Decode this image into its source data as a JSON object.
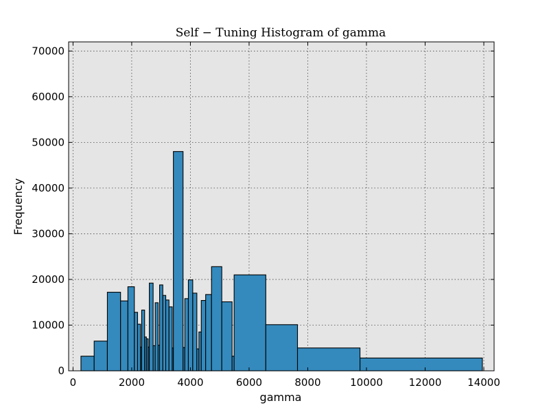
{
  "chart_data": {
    "type": "bar",
    "title": "Self − Tuning Histogram of gamma",
    "xlabel": "gamma",
    "ylabel": "Frequency",
    "xlim": [
      -150,
      14350
    ],
    "ylim": [
      0,
      72000
    ],
    "xticks": [
      0,
      2000,
      4000,
      6000,
      8000,
      10000,
      12000,
      14000
    ],
    "yticks": [
      0,
      10000,
      20000,
      30000,
      40000,
      50000,
      60000,
      70000
    ],
    "xtick_labels": [
      "0",
      "2000",
      "4000",
      "6000",
      "8000",
      "10000",
      "12000",
      "14000"
    ],
    "ytick_labels": [
      "0",
      "10000",
      "20000",
      "30000",
      "40000",
      "50000",
      "60000",
      "70000"
    ],
    "grid": true,
    "bar_color": "#348ABD",
    "plot_bg": "#E5E5E5",
    "bins": [
      {
        "x0": 270,
        "x1": 720,
        "value": 3200
      },
      {
        "x0": 720,
        "x1": 1170,
        "value": 6500
      },
      {
        "x0": 1170,
        "x1": 1620,
        "value": 17200
      },
      {
        "x0": 1620,
        "x1": 1870,
        "value": 15300
      },
      {
        "x0": 1870,
        "x1": 2090,
        "value": 18400
      },
      {
        "x0": 2090,
        "x1": 2200,
        "value": 12800
      },
      {
        "x0": 2200,
        "x1": 2300,
        "value": 10200
      },
      {
        "x0": 2300,
        "x1": 2340,
        "value": 5200
      },
      {
        "x0": 2340,
        "x1": 2440,
        "value": 13300
      },
      {
        "x0": 2440,
        "x1": 2500,
        "value": 7400
      },
      {
        "x0": 2500,
        "x1": 2560,
        "value": 7000
      },
      {
        "x0": 2560,
        "x1": 2600,
        "value": 5200
      },
      {
        "x0": 2600,
        "x1": 2730,
        "value": 19200
      },
      {
        "x0": 2730,
        "x1": 2800,
        "value": 5500
      },
      {
        "x0": 2800,
        "x1": 2900,
        "value": 14900
      },
      {
        "x0": 2900,
        "x1": 2950,
        "value": 5600
      },
      {
        "x0": 2950,
        "x1": 3060,
        "value": 18800
      },
      {
        "x0": 3060,
        "x1": 3160,
        "value": 16500
      },
      {
        "x0": 3160,
        "x1": 3270,
        "value": 15500
      },
      {
        "x0": 3270,
        "x1": 3380,
        "value": 14000
      },
      {
        "x0": 3380,
        "x1": 3420,
        "value": 5000
      },
      {
        "x0": 3420,
        "x1": 3750,
        "value": 48000
      },
      {
        "x0": 3750,
        "x1": 3810,
        "value": 5100
      },
      {
        "x0": 3810,
        "x1": 3930,
        "value": 15800
      },
      {
        "x0": 3930,
        "x1": 4080,
        "value": 19900
      },
      {
        "x0": 4080,
        "x1": 4220,
        "value": 17000
      },
      {
        "x0": 4220,
        "x1": 4290,
        "value": 4800
      },
      {
        "x0": 4290,
        "x1": 4370,
        "value": 8500
      },
      {
        "x0": 4370,
        "x1": 4520,
        "value": 15400
      },
      {
        "x0": 4520,
        "x1": 4720,
        "value": 16700
      },
      {
        "x0": 4720,
        "x1": 5070,
        "value": 22800
      },
      {
        "x0": 5070,
        "x1": 5420,
        "value": 15100
      },
      {
        "x0": 5420,
        "x1": 5490,
        "value": 3200
      },
      {
        "x0": 5490,
        "x1": 6570,
        "value": 21000
      },
      {
        "x0": 6570,
        "x1": 7650,
        "value": 10100
      },
      {
        "x0": 7650,
        "x1": 9780,
        "value": 5000
      },
      {
        "x0": 9780,
        "x1": 13950,
        "value": 2800
      }
    ]
  }
}
